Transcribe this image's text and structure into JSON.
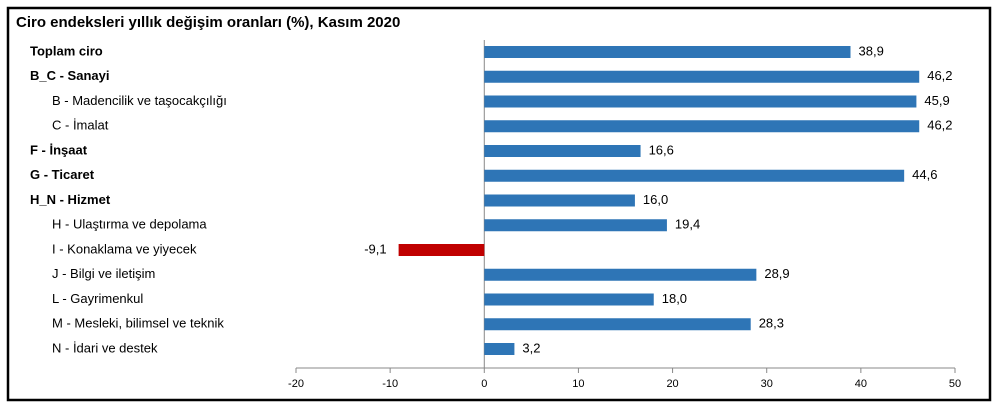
{
  "chart_data": {
    "type": "hbar",
    "title": "Ciro endeksleri yıllık değişim oranları (%), Kasım 2020",
    "categories": [
      "Toplam ciro",
      "B_C - Sanayi",
      "B - Madencilik ve taşocakçılığı",
      "C - İmalat",
      "F - İnşaat",
      "G - Ticaret",
      "H_N - Hizmet",
      "H - Ulaştırma ve depolama",
      "I - Konaklama ve yiyecek",
      "J - Bilgi ve iletişim",
      "L - Gayrimenkul",
      "M - Mesleki, bilimsel ve teknik",
      "N - İdari ve destek"
    ],
    "values": [
      38.9,
      46.2,
      45.9,
      46.2,
      16.6,
      44.6,
      16.0,
      19.4,
      -9.1,
      28.9,
      18.0,
      28.3,
      3.2
    ],
    "value_labels": [
      "38,9",
      "46,2",
      "45,9",
      "46,2",
      "16,6",
      "44,6",
      "16,0",
      "19,4",
      "-9,1",
      "28,9",
      "18,0",
      "28,3",
      "3,2"
    ],
    "color": "#2e75b6",
    "negative_color": "#c00000",
    "xlim": [
      -20,
      50
    ],
    "xticks": [
      -20,
      -10,
      0,
      10,
      20,
      30,
      40,
      50
    ],
    "grid": false
  }
}
